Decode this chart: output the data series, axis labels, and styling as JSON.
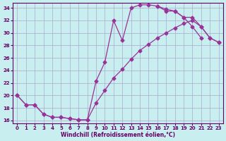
{
  "xlabel": "Windchill (Refroidissement éolien,°C)",
  "background_color": "#c8eef0",
  "line_color": "#993399",
  "grid_color": "#aaaacc",
  "xlim": [
    -0.5,
    23.5
  ],
  "ylim": [
    15.5,
    34.8
  ],
  "xticks": [
    0,
    1,
    2,
    3,
    4,
    5,
    6,
    7,
    8,
    9,
    10,
    11,
    12,
    13,
    14,
    15,
    16,
    17,
    18,
    19,
    20,
    21,
    22,
    23
  ],
  "yticks": [
    16,
    18,
    20,
    22,
    24,
    26,
    28,
    30,
    32,
    34
  ],
  "line1_x": [
    0,
    1,
    2,
    3,
    4,
    5,
    6,
    7,
    8,
    9,
    10,
    11,
    12,
    13,
    14,
    15,
    16,
    17,
    18,
    19,
    20,
    21
  ],
  "line1_y": [
    20,
    18.5,
    18.5,
    17.0,
    16.5,
    16.5,
    16.3,
    16.1,
    16.1,
    22.3,
    25.3,
    32.0,
    28.8,
    34.0,
    34.5,
    34.5,
    34.3,
    33.5,
    33.5,
    32.5,
    31.0,
    29.2
  ],
  "line2_x": [
    0,
    1,
    2,
    3,
    4,
    5,
    6,
    7,
    8,
    9,
    10,
    11,
    12,
    13,
    14,
    15,
    16,
    17,
    18,
    19,
    20,
    21,
    22,
    23
  ],
  "line2_y": [
    20,
    18.5,
    18.5,
    17.0,
    16.5,
    16.5,
    16.3,
    16.1,
    16.1,
    18.8,
    20.8,
    22.8,
    24.2,
    25.8,
    27.2,
    28.2,
    29.2,
    30.0,
    30.8,
    31.5,
    32.0,
    31.0,
    29.2,
    28.5
  ],
  "line3_x": [
    16,
    17,
    18,
    19,
    20,
    21,
    22,
    23
  ],
  "line3_y": [
    34.3,
    33.8,
    33.5,
    32.5,
    32.5,
    31.0,
    29.2,
    28.5
  ]
}
